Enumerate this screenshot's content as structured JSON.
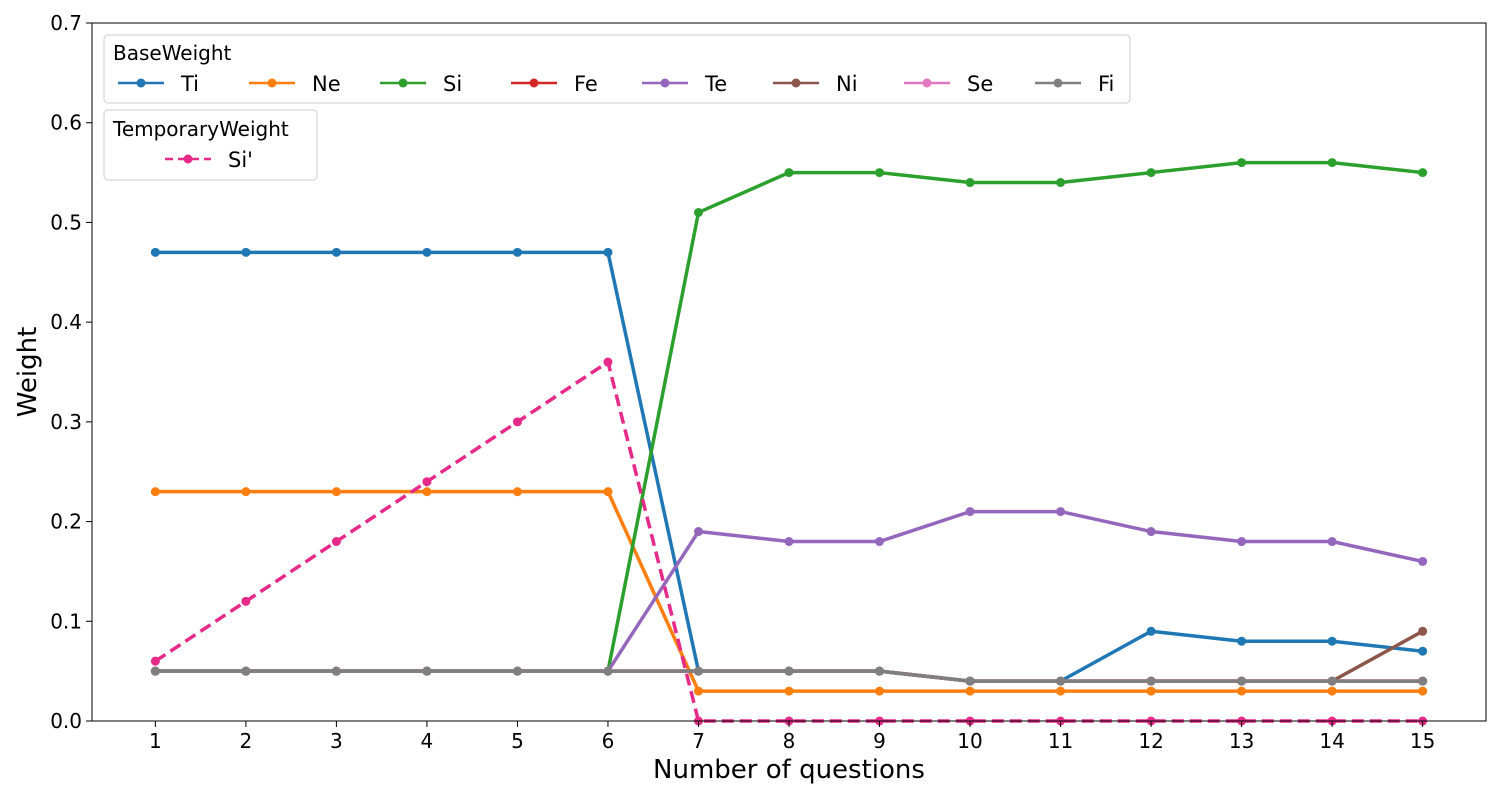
{
  "chart_data": {
    "type": "line",
    "xlabel": "Number of questions",
    "ylabel": "Weight",
    "x": [
      1,
      2,
      3,
      4,
      5,
      6,
      7,
      8,
      9,
      10,
      11,
      12,
      13,
      14,
      15
    ],
    "x_ticks": [
      "1",
      "2",
      "3",
      "4",
      "5",
      "6",
      "7",
      "8",
      "9",
      "10",
      "11",
      "12",
      "13",
      "14",
      "15"
    ],
    "xlim": [
      0.3,
      15.7
    ],
    "ylim": [
      0,
      0.7
    ],
    "y_ticks": [
      "0.0",
      "0.1",
      "0.2",
      "0.3",
      "0.4",
      "0.5",
      "0.6",
      "0.7"
    ],
    "grid": false,
    "legend_groups": [
      {
        "title": "BaseWeight",
        "placement": "top-left",
        "series_names": [
          "Ti",
          "Ne",
          "Si",
          "Fe",
          "Te",
          "Ni",
          "Se",
          "Fi"
        ]
      },
      {
        "title": "TemporaryWeight",
        "placement": "top-left",
        "series_names": [
          "Si'"
        ]
      }
    ],
    "series": [
      {
        "name": "Ti",
        "color": "#1f77b4",
        "dashed": false,
        "values": [
          0.47,
          0.47,
          0.47,
          0.47,
          0.47,
          0.47,
          0.05,
          0.05,
          0.05,
          0.04,
          0.04,
          0.09,
          0.08,
          0.08,
          0.07
        ]
      },
      {
        "name": "Ne",
        "color": "#ff7f0e",
        "dashed": false,
        "values": [
          0.23,
          0.23,
          0.23,
          0.23,
          0.23,
          0.23,
          0.03,
          0.03,
          0.03,
          0.03,
          0.03,
          0.03,
          0.03,
          0.03,
          0.03
        ]
      },
      {
        "name": "Si",
        "color": "#2ca02c",
        "dashed": false,
        "values": [
          0.05,
          0.05,
          0.05,
          0.05,
          0.05,
          0.05,
          0.51,
          0.55,
          0.55,
          0.54,
          0.54,
          0.55,
          0.56,
          0.56,
          0.55
        ]
      },
      {
        "name": "Fe",
        "color": "#d62728",
        "dashed": false,
        "values": [
          0.05,
          0.05,
          0.05,
          0.05,
          0.05,
          0.05,
          0.05,
          0.05,
          0.05,
          0.04,
          0.04,
          0.04,
          0.04,
          0.04,
          0.04
        ]
      },
      {
        "name": "Te",
        "color": "#9467bd",
        "dashed": false,
        "values": [
          0.05,
          0.05,
          0.05,
          0.05,
          0.05,
          0.05,
          0.19,
          0.18,
          0.18,
          0.21,
          0.21,
          0.19,
          0.18,
          0.18,
          0.16
        ]
      },
      {
        "name": "Ni",
        "color": "#8c564b",
        "dashed": false,
        "values": [
          0.05,
          0.05,
          0.05,
          0.05,
          0.05,
          0.05,
          0.05,
          0.05,
          0.05,
          0.04,
          0.04,
          0.04,
          0.04,
          0.04,
          0.09
        ]
      },
      {
        "name": "Se",
        "color": "#e377c2",
        "dashed": false,
        "values": [
          0.05,
          0.05,
          0.05,
          0.05,
          0.05,
          0.05,
          0.05,
          0.05,
          0.05,
          0.04,
          0.04,
          0.04,
          0.04,
          0.04,
          0.04
        ]
      },
      {
        "name": "Fi",
        "color": "#7f7f7f",
        "dashed": false,
        "values": [
          0.05,
          0.05,
          0.05,
          0.05,
          0.05,
          0.05,
          0.05,
          0.05,
          0.05,
          0.04,
          0.04,
          0.04,
          0.04,
          0.04,
          0.04
        ]
      },
      {
        "name": "Si'",
        "color": "#e62a8a",
        "dashed": true,
        "values": [
          0.06,
          0.12,
          0.18,
          0.24,
          0.3,
          0.36,
          0.0,
          0.0,
          0.0,
          0.0,
          0.0,
          0.0,
          0.0,
          0.0,
          0.0
        ]
      }
    ]
  }
}
